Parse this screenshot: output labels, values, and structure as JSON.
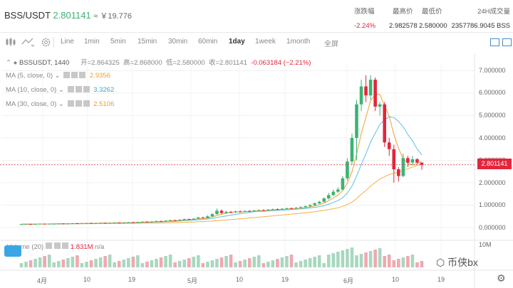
{
  "header": {
    "pair": "BSS/USDT",
    "price": "2.801141",
    "approx": "≈ ￥19.776",
    "stats": [
      {
        "label": "涨跌幅",
        "value": "-2.24%",
        "color": "#e2263b"
      },
      {
        "label": "最高价",
        "value": "2.982578",
        "color": "#333333"
      },
      {
        "label": "最低价",
        "value": "2.580000",
        "color": "#333333"
      },
      {
        "label": "24H成交量",
        "value": "2357786.9045 BSS",
        "color": "#333333"
      }
    ]
  },
  "toolbar": {
    "icons": [
      "candles-icon",
      "line-style-icon",
      "settings-icon"
    ],
    "intervals": [
      "Line",
      "1min",
      "5min",
      "15min",
      "30min",
      "60min",
      "1day",
      "1week",
      "1month"
    ],
    "active_interval": "1day",
    "fullscreen": "全屏"
  },
  "legend": {
    "symbol": "BSSUSDT, 1440",
    "open": "开=2.864325",
    "high": "高=2.868000",
    "low": "低=2.580000",
    "close": "收=2.801141",
    "change": "-0.063184 (−2.21%)",
    "ma": [
      {
        "label": "MA (5, close, 0)",
        "value": "2.9356",
        "color": "#f0a030"
      },
      {
        "label": "MA (10, close, 0)",
        "value": "3.3262",
        "color": "#5bc0de"
      },
      {
        "label": "MA (30, close, 0)",
        "value": "2.5106",
        "color": "#f5b041"
      }
    ],
    "volume_label": "Volume (20)",
    "volume_value": "1.831M",
    "volume_na": "n/a"
  },
  "price_axis": [
    "7.000000",
    "6.000000",
    "5.000000",
    "4.000000",
    "3.000000",
    "2.000000",
    "1.000000",
    "0.000000"
  ],
  "volume_axis": "10M",
  "current_price_label": "2.801141",
  "time_axis": [
    "4月",
    "10",
    "19",
    "5月",
    "10",
    "19",
    "6月",
    "10",
    "19"
  ],
  "watermark": "币侠bx",
  "colors": {
    "up": "#3cb371",
    "down": "#e2263b",
    "ma5": "#f0a030",
    "ma10": "#5bc0de",
    "ma30": "#f5b041"
  },
  "chart_data": {
    "type": "candlestick",
    "title": "BSSUSDT, 1440",
    "ylim": [
      0,
      7
    ],
    "candles": [
      [
        0.15,
        0.15,
        0.14,
        0.16
      ],
      [
        0.15,
        0.16,
        0.14,
        0.17
      ],
      [
        0.16,
        0.15,
        0.14,
        0.17
      ],
      [
        0.15,
        0.16,
        0.14,
        0.17
      ],
      [
        0.16,
        0.17,
        0.15,
        0.18
      ],
      [
        0.17,
        0.16,
        0.15,
        0.18
      ],
      [
        0.16,
        0.17,
        0.15,
        0.18
      ],
      [
        0.17,
        0.17,
        0.16,
        0.18
      ],
      [
        0.17,
        0.18,
        0.16,
        0.19
      ],
      [
        0.18,
        0.17,
        0.16,
        0.19
      ],
      [
        0.17,
        0.18,
        0.16,
        0.19
      ],
      [
        0.18,
        0.19,
        0.17,
        0.2
      ],
      [
        0.19,
        0.18,
        0.17,
        0.2
      ],
      [
        0.18,
        0.19,
        0.17,
        0.2
      ],
      [
        0.19,
        0.2,
        0.18,
        0.21
      ],
      [
        0.2,
        0.19,
        0.18,
        0.21
      ],
      [
        0.19,
        0.2,
        0.18,
        0.21
      ],
      [
        0.2,
        0.21,
        0.19,
        0.22
      ],
      [
        0.21,
        0.2,
        0.19,
        0.22
      ],
      [
        0.2,
        0.21,
        0.19,
        0.22
      ],
      [
        0.21,
        0.22,
        0.2,
        0.23
      ],
      [
        0.22,
        0.21,
        0.2,
        0.23
      ],
      [
        0.21,
        0.22,
        0.2,
        0.24
      ],
      [
        0.22,
        0.24,
        0.21,
        0.25
      ],
      [
        0.24,
        0.23,
        0.22,
        0.25
      ],
      [
        0.23,
        0.25,
        0.22,
        0.26
      ],
      [
        0.25,
        0.26,
        0.24,
        0.28
      ],
      [
        0.26,
        0.25,
        0.24,
        0.28
      ],
      [
        0.25,
        0.27,
        0.24,
        0.29
      ],
      [
        0.27,
        0.29,
        0.26,
        0.31
      ],
      [
        0.29,
        0.28,
        0.27,
        0.31
      ],
      [
        0.28,
        0.31,
        0.27,
        0.33
      ],
      [
        0.31,
        0.33,
        0.3,
        0.35
      ],
      [
        0.33,
        0.32,
        0.31,
        0.35
      ],
      [
        0.32,
        0.35,
        0.31,
        0.37
      ],
      [
        0.35,
        0.38,
        0.34,
        0.4
      ],
      [
        0.38,
        0.36,
        0.35,
        0.4
      ],
      [
        0.36,
        0.4,
        0.35,
        0.42
      ],
      [
        0.4,
        0.45,
        0.39,
        0.48
      ],
      [
        0.45,
        0.42,
        0.41,
        0.48
      ],
      [
        0.42,
        0.5,
        0.41,
        0.55
      ],
      [
        0.5,
        0.6,
        0.48,
        0.65
      ],
      [
        0.6,
        0.75,
        0.58,
        0.85
      ],
      [
        0.75,
        0.65,
        0.6,
        0.8
      ],
      [
        0.65,
        0.7,
        0.62,
        0.75
      ],
      [
        0.7,
        0.68,
        0.64,
        0.74
      ],
      [
        0.68,
        0.72,
        0.65,
        0.76
      ],
      [
        0.72,
        0.71,
        0.68,
        0.76
      ],
      [
        0.71,
        0.74,
        0.69,
        0.77
      ],
      [
        0.74,
        0.73,
        0.7,
        0.78
      ],
      [
        0.73,
        0.76,
        0.71,
        0.79
      ],
      [
        0.76,
        0.78,
        0.74,
        0.81
      ],
      [
        0.78,
        0.77,
        0.75,
        0.81
      ],
      [
        0.77,
        0.8,
        0.76,
        0.83
      ],
      [
        0.8,
        0.82,
        0.78,
        0.85
      ],
      [
        0.82,
        0.81,
        0.79,
        0.86
      ],
      [
        0.81,
        0.84,
        0.8,
        0.87
      ],
      [
        0.84,
        0.86,
        0.82,
        0.89
      ],
      [
        0.86,
        0.85,
        0.83,
        0.9
      ],
      [
        0.85,
        0.88,
        0.84,
        0.92
      ],
      [
        0.88,
        0.91,
        0.86,
        0.95
      ],
      [
        0.91,
        0.95,
        0.89,
        0.99
      ],
      [
        0.95,
        1.0,
        0.93,
        1.05
      ],
      [
        1.0,
        1.08,
        0.98,
        1.12
      ],
      [
        1.08,
        1.15,
        1.05,
        1.2
      ],
      [
        1.15,
        1.3,
        1.12,
        1.35
      ],
      [
        1.3,
        1.45,
        1.25,
        1.55
      ],
      [
        1.45,
        1.6,
        1.4,
        1.7
      ],
      [
        1.6,
        1.7,
        1.55,
        1.8
      ],
      [
        1.7,
        2.2,
        1.65,
        2.3
      ],
      [
        2.2,
        2.95,
        2.1,
        3.1
      ],
      [
        2.95,
        4.0,
        2.8,
        4.2
      ],
      [
        4.0,
        5.5,
        3.0,
        5.7
      ],
      [
        5.5,
        6.3,
        5.2,
        6.6
      ],
      [
        6.3,
        5.9,
        5.6,
        6.8
      ],
      [
        5.9,
        6.6,
        5.7,
        6.8
      ],
      [
        6.6,
        5.4,
        5.2,
        6.7
      ],
      [
        5.4,
        5.5,
        5.0,
        5.6
      ],
      [
        5.5,
        3.8,
        3.6,
        5.6
      ],
      [
        3.8,
        3.5,
        3.2,
        4.0
      ],
      [
        3.5,
        2.6,
        2.0,
        3.7
      ],
      [
        2.6,
        2.3,
        2.05,
        2.7
      ],
      [
        2.3,
        3.1,
        2.25,
        3.3
      ],
      [
        3.1,
        2.9,
        2.7,
        3.2
      ],
      [
        2.9,
        3.05,
        2.8,
        3.2
      ],
      [
        3.05,
        2.9,
        2.85,
        3.1
      ],
      [
        2.9,
        2.8,
        2.58,
        2.87
      ]
    ],
    "series": [
      {
        "name": "MA5",
        "last": 2.9356
      },
      {
        "name": "MA10",
        "last": 3.3262
      },
      {
        "name": "MA30",
        "last": 2.5106
      }
    ],
    "volume_ylim": [
      0,
      10000000
    ],
    "volume_last": 1831000
  }
}
